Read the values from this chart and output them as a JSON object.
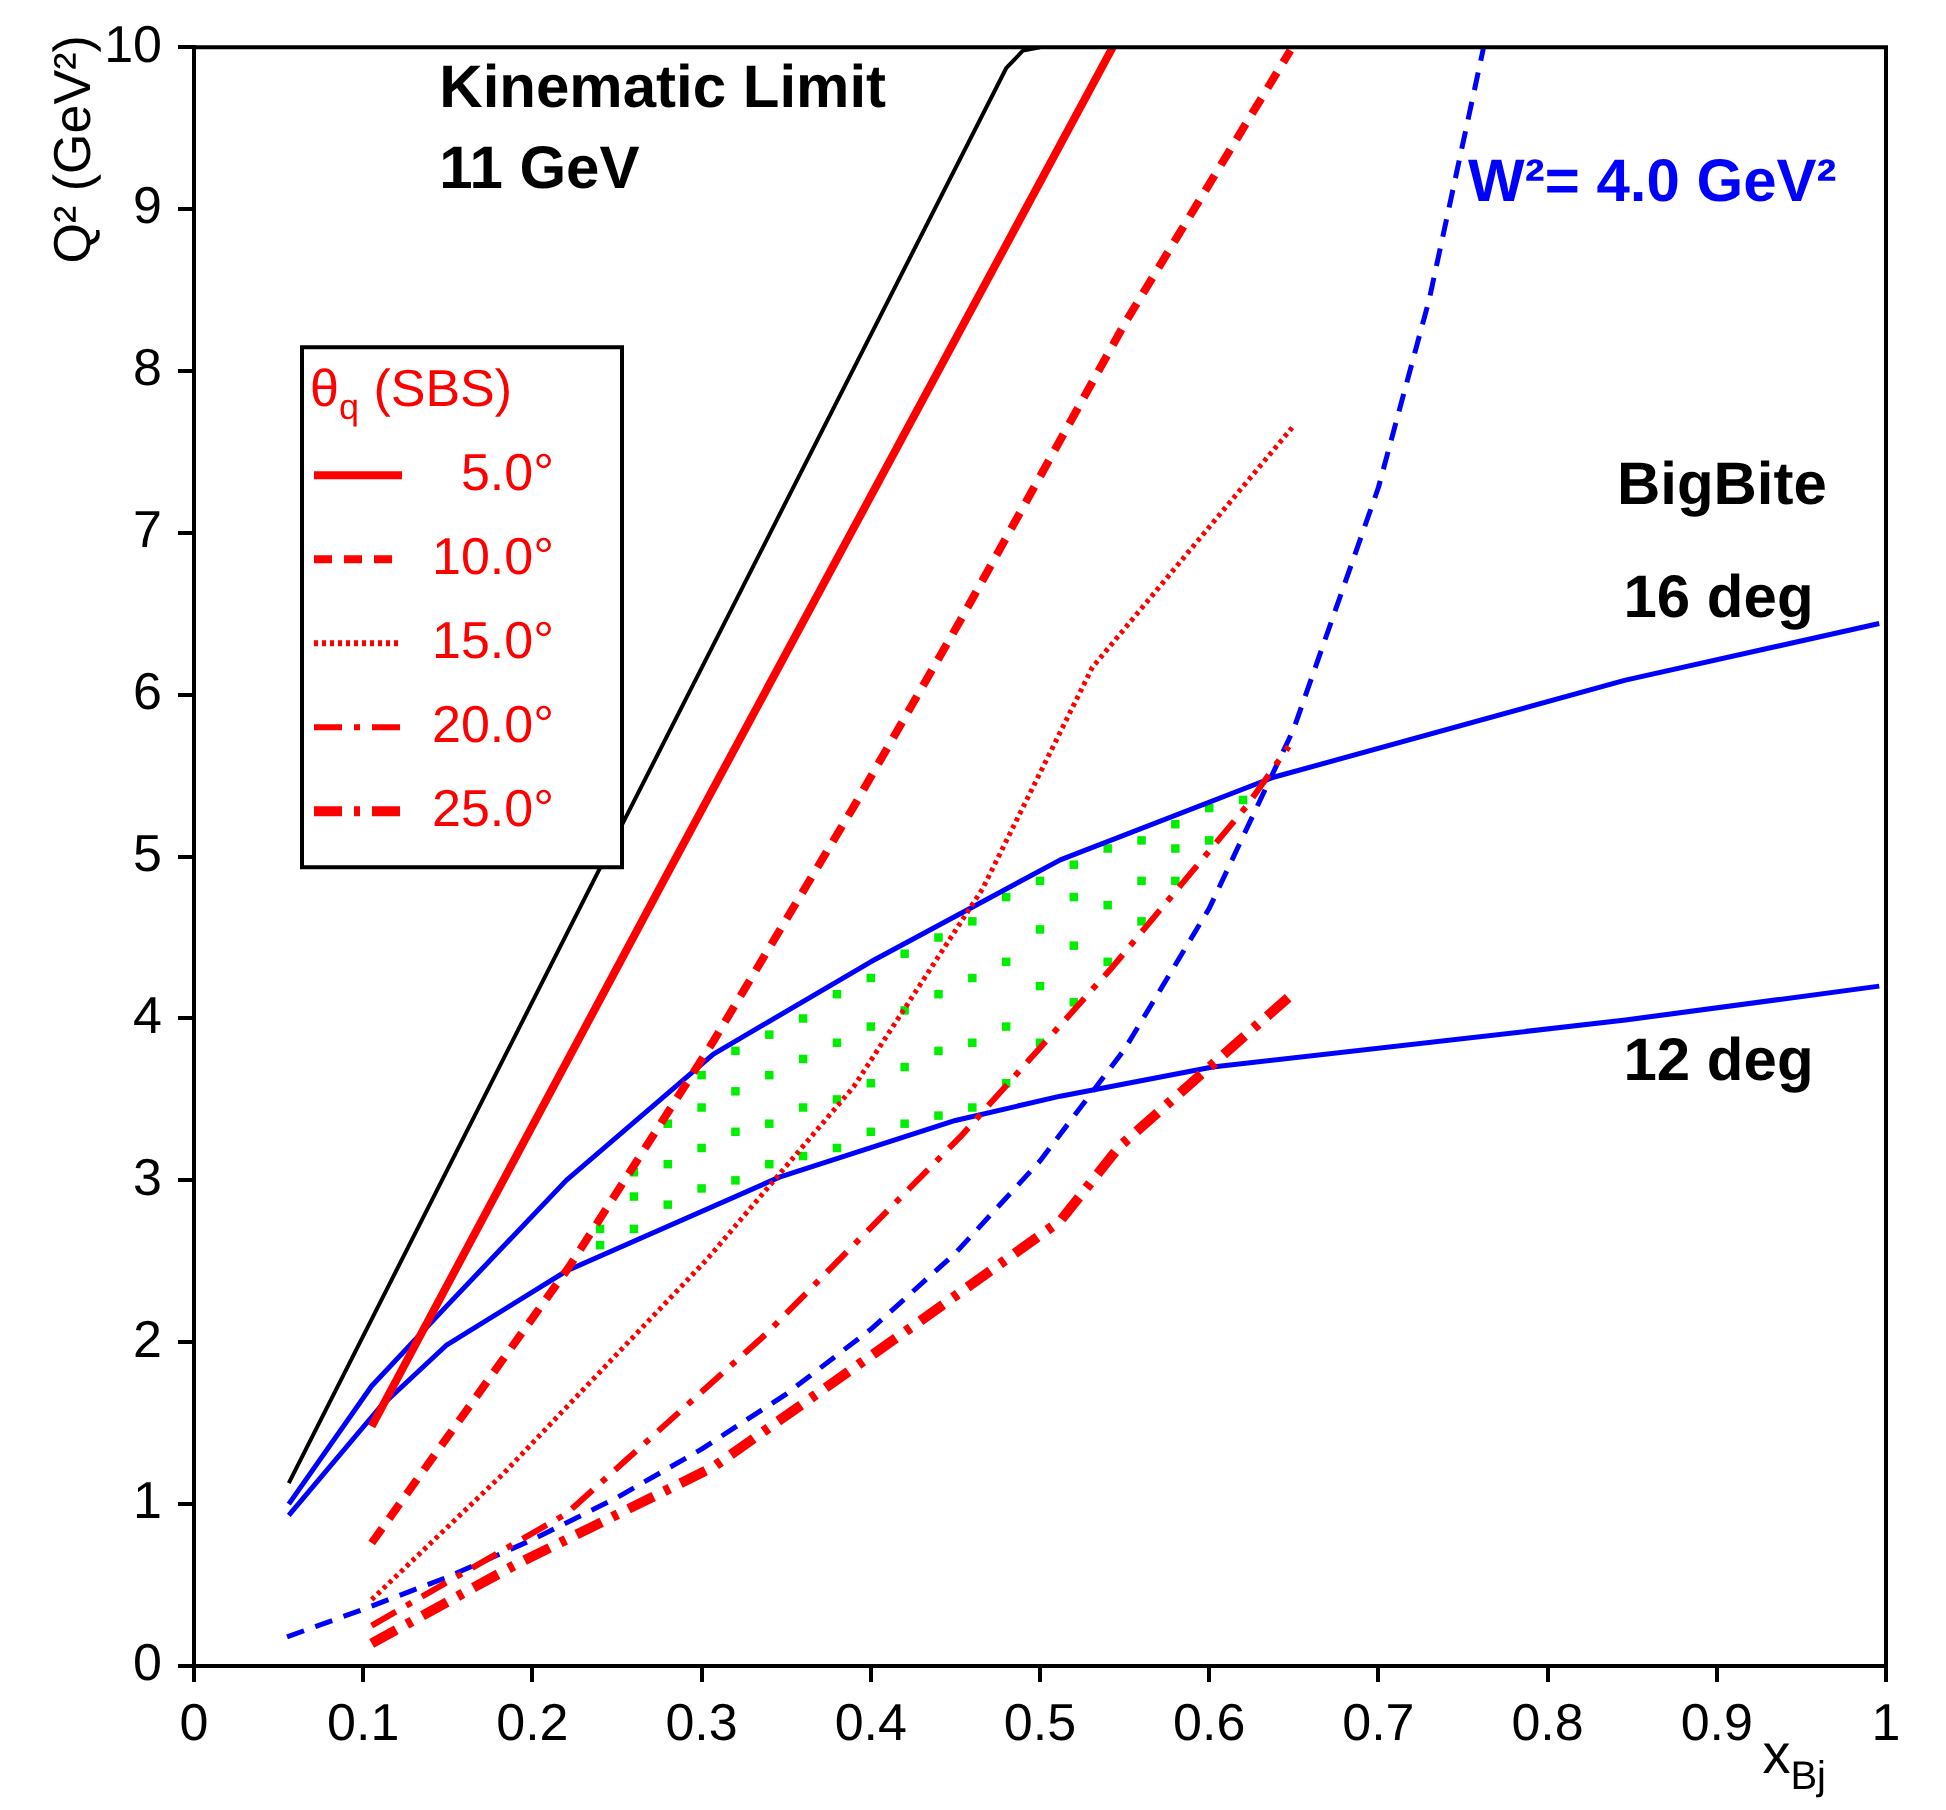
{
  "chart_data": {
    "type": "line",
    "xlabel": "x$_{Bj}$",
    "ylabel": "Q² (GeV²)",
    "legend_title": "θ$_{q}$ (SBS)",
    "legend": "top left",
    "xlim": [
      0,
      1
    ],
    "ylim": [
      0,
      10
    ],
    "xticks": [
      0,
      0.1,
      0.2,
      0.3,
      0.4,
      0.5,
      0.6,
      0.7,
      0.8,
      0.9,
      1
    ],
    "yticks": [
      0,
      1,
      2,
      3,
      4,
      5,
      6,
      7,
      8,
      9,
      10
    ],
    "series": [
      {
        "color": "#000000",
        "line_style": "solid",
        "x": [
          0.056,
          0.24,
          0.48,
          0.49,
          0.5
        ],
        "values": [
          1.13,
          4.93,
          9.87,
          9.98,
          10
        ]
      },
      {
        "type": "line",
        "name": "5.0°",
        "color": "#ff0000",
        "line_style": "solid",
        "x": [
          0.105,
          0.279,
          0.543
        ],
        "values": [
          1.48,
          4.88,
          10
        ]
      },
      {
        "type": "line",
        "name": "10.0°",
        "color": "#ff0000",
        "line_style": "dashed",
        "x": [
          0.105,
          0.222,
          0.307,
          0.39,
          0.453,
          0.551,
          0.648
        ],
        "values": [
          0.76,
          2.47,
          3.86,
          5.31,
          6.46,
          8.31,
          9.98
        ]
      },
      {
        "type": "line",
        "name": "15.0°",
        "color": "#ff0000",
        "line_style": "dotted",
        "x": [
          0.105,
          0.183,
          0.303,
          0.39,
          0.466,
          0.531,
          0.649
        ],
        "values": [
          0.41,
          1.19,
          2.51,
          3.58,
          4.8,
          6.17,
          7.65
        ]
      },
      {
        "type": "line",
        "name": "20.0°",
        "color": "#ff0000",
        "line_style": "dashdot",
        "x": [
          0.105,
          0.22,
          0.338,
          0.453,
          0.543,
          0.622,
          0.647
        ],
        "values": [
          0.25,
          0.94,
          2.05,
          3.27,
          4.32,
          5.31,
          5.68
        ]
      },
      {
        "type": "line",
        "name": "25.0°",
        "color": "#ff0000",
        "line_style": "dashdot",
        "x": [
          0.105,
          0.189,
          0.307,
          0.425,
          0.512,
          0.547,
          0.649
        ],
        "values": [
          0.14,
          0.62,
          1.23,
          2.1,
          2.75,
          3.21,
          4.15
        ]
      },
      {
        "type": "line",
        "color": "#0000ff",
        "line_style": "dashed",
        "x": [
          0.055,
          0.1,
          0.15,
          0.2,
          0.25,
          0.3,
          0.35,
          0.4,
          0.45,
          0.5,
          0.55,
          0.6,
          0.65,
          0.7,
          0.73,
          0.762
        ],
        "values": [
          0.18,
          0.35,
          0.55,
          0.78,
          1.04,
          1.34,
          1.68,
          2.08,
          2.55,
          3.12,
          3.81,
          4.68,
          5.79,
          7.28,
          8.44,
          9.99
        ]
      },
      {
        "type": "line",
        "color": "#0000ff",
        "line_style": "solid",
        "x": [
          0.056,
          0.105,
          0.149,
          0.22,
          0.307,
          0.4,
          0.512,
          0.638,
          0.846,
          0.996
        ],
        "values": [
          1.0,
          1.73,
          2.22,
          3.0,
          3.78,
          4.35,
          4.98,
          5.49,
          6.09,
          6.44
        ]
      },
      {
        "type": "line",
        "color": "#0000ff",
        "line_style": "solid",
        "x": [
          0.056,
          0.11,
          0.149,
          0.22,
          0.346,
          0.45,
          0.512,
          0.602,
          0.846,
          0.996
        ],
        "values": [
          0.93,
          1.6,
          1.98,
          2.44,
          3.02,
          3.37,
          3.52,
          3.7,
          3.99,
          4.2
        ]
      },
      {
        "type": "scatter",
        "color": "#00ee00",
        "marker": "square",
        "line_style": "none",
        "x": [
          0.24,
          0.24,
          0.26,
          0.26,
          0.26,
          0.28,
          0.28,
          0.28,
          0.3,
          0.3,
          0.3,
          0.3,
          0.32,
          0.32,
          0.32,
          0.32,
          0.34,
          0.34,
          0.34,
          0.34,
          0.36,
          0.36,
          0.36,
          0.36,
          0.38,
          0.38,
          0.38,
          0.38,
          0.4,
          0.4,
          0.4,
          0.4,
          0.42,
          0.42,
          0.42,
          0.42,
          0.44,
          0.44,
          0.44,
          0.44,
          0.46,
          0.46,
          0.46,
          0.46,
          0.48,
          0.48,
          0.48,
          0.48,
          0.5,
          0.5,
          0.5,
          0.5,
          0.52,
          0.52,
          0.52,
          0.52,
          0.54,
          0.54,
          0.54,
          0.56,
          0.56,
          0.56,
          0.58,
          0.58,
          0.58,
          0.6,
          0.6,
          0.62
        ],
        "values": [
          2.6,
          2.7,
          2.7,
          2.9,
          3.05,
          2.85,
          3.1,
          3.35,
          2.95,
          3.2,
          3.45,
          3.65,
          3.0,
          3.3,
          3.55,
          3.8,
          3.1,
          3.35,
          3.65,
          3.9,
          3.15,
          3.45,
          3.75,
          4.0,
          3.2,
          3.5,
          3.85,
          4.15,
          3.3,
          3.6,
          3.95,
          4.25,
          3.35,
          3.7,
          4.05,
          4.4,
          3.4,
          3.8,
          4.15,
          4.5,
          3.45,
          3.85,
          4.25,
          4.6,
          3.6,
          3.95,
          4.35,
          4.75,
          3.85,
          4.2,
          4.55,
          4.85,
          4.1,
          4.45,
          4.75,
          4.95,
          4.35,
          4.7,
          5.05,
          4.6,
          4.85,
          5.1,
          4.85,
          5.05,
          5.2,
          5.1,
          5.3,
          5.35
        ]
      }
    ],
    "annotations": [
      "Kinematic Limit",
      "11 GeV",
      "W²= 4.0 GeV²",
      "BigBite",
      "16 deg",
      "12 deg"
    ]
  }
}
